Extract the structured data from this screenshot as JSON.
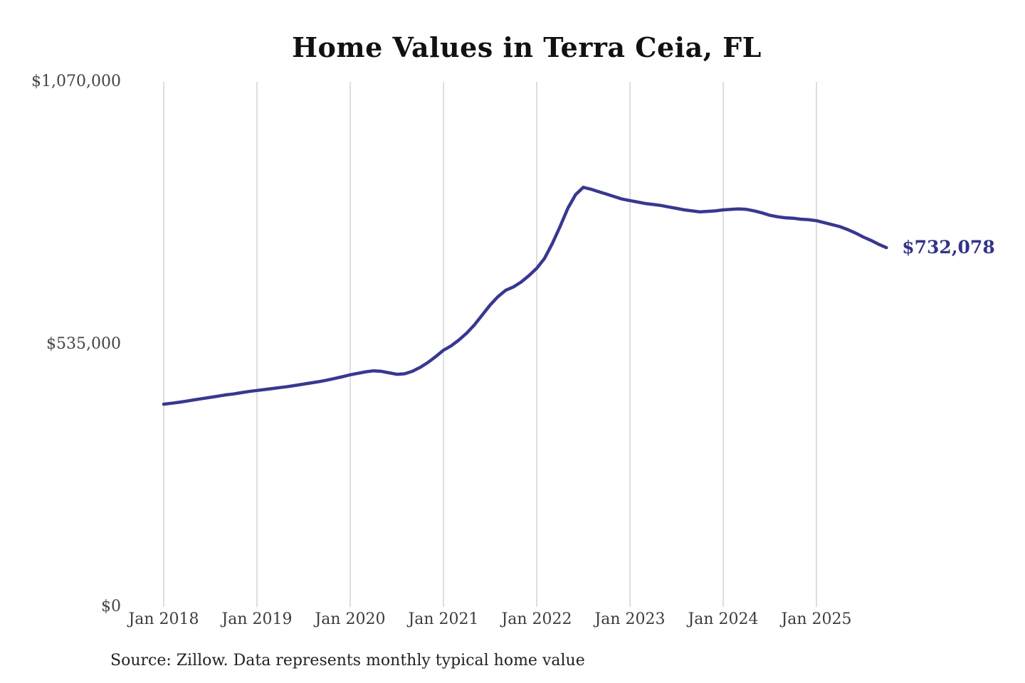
{
  "title": "Home Values in Terra Ceia, FL",
  "source_note": "Source: Zillow. Data represents monthly typical home value",
  "annotation": {
    "latest_value_label": "$732,078"
  },
  "colors": {
    "background": "#ffffff",
    "line": "#383890",
    "annotation": "#333388",
    "gridline": "#cccccc",
    "title": "#111111",
    "axis_label": "#444444",
    "source": "#222222"
  },
  "y_axis": {
    "ticks": [
      {
        "label": "$1,070,000",
        "value": 1070000
      },
      {
        "label": "$535,000",
        "value": 535000
      },
      {
        "label": "$0",
        "value": 0
      }
    ]
  },
  "x_axis": {
    "ticks": [
      {
        "label": "Jan 2018",
        "month_index": 0
      },
      {
        "label": "Jan 2019",
        "month_index": 12
      },
      {
        "label": "Jan 2020",
        "month_index": 24
      },
      {
        "label": "Jan 2021",
        "month_index": 36
      },
      {
        "label": "Jan 2022",
        "month_index": 48
      },
      {
        "label": "Jan 2023",
        "month_index": 60
      },
      {
        "label": "Jan 2024",
        "month_index": 72
      },
      {
        "label": "Jan 2025",
        "month_index": 84
      }
    ]
  },
  "chart_data": {
    "type": "line",
    "title": "Home Values in Terra Ceia, FL",
    "xlabel": "",
    "ylabel": "",
    "x_start": "2018-01",
    "x_end": "2025-10",
    "x_interval": "monthly",
    "ylim": [
      0,
      1070000
    ],
    "grid": "vertical-only",
    "legend": "none",
    "latest_value": 732078,
    "series": [
      {
        "name": "typical_home_value",
        "values": [
          413000,
          415000,
          417000,
          419500,
          422000,
          424500,
          427000,
          429500,
          432000,
          434000,
          436500,
          439000,
          441000,
          443000,
          445000,
          447000,
          449000,
          451500,
          454000,
          456500,
          459000,
          462000,
          465500,
          469000,
          473000,
          476000,
          479000,
          481000,
          480000,
          477000,
          474000,
          475000,
          480000,
          488000,
          498000,
          510000,
          523000,
          532000,
          544000,
          558000,
          575000,
          595000,
          615000,
          632000,
          645000,
          652000,
          662000,
          675000,
          690000,
          710000,
          740000,
          775000,
          812000,
          840000,
          855000,
          851000,
          846000,
          841000,
          836000,
          831000,
          828000,
          825000,
          822000,
          820000,
          818000,
          815000,
          812000,
          809000,
          807000,
          805000,
          806000,
          807000,
          809000,
          810000,
          811000,
          810000,
          807000,
          803000,
          798000,
          795000,
          793000,
          792000,
          790000,
          789000,
          787000,
          783000,
          779000,
          775000,
          769000,
          762000,
          754000,
          747000,
          739000,
          732078
        ]
      }
    ]
  }
}
